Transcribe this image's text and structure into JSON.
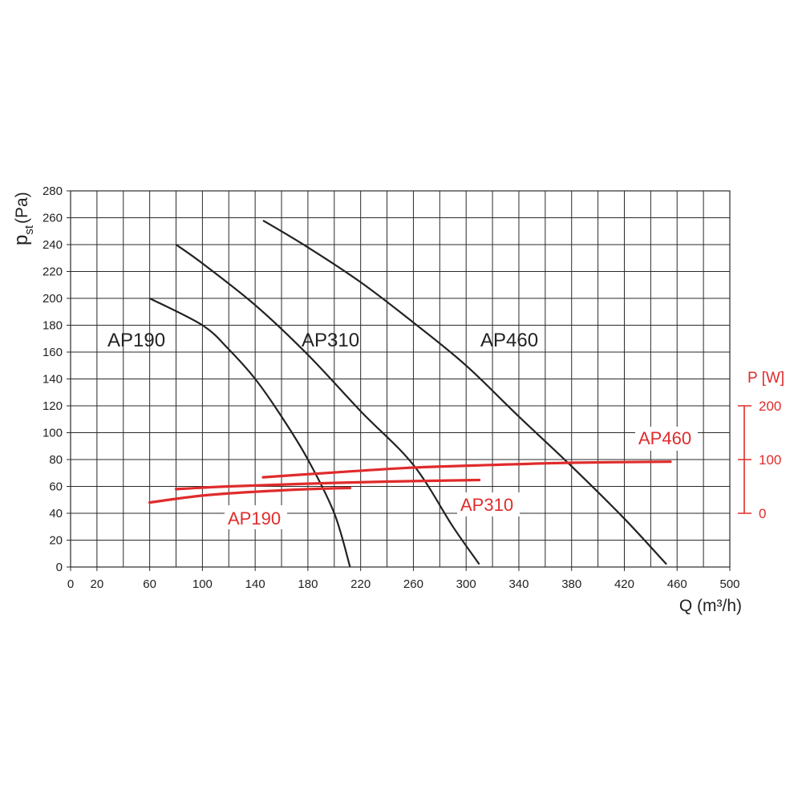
{
  "chart_data": {
    "type": "line",
    "xlabel": "Q (m³/h)",
    "x_ticks": [
      0,
      20,
      60,
      100,
      140,
      180,
      220,
      260,
      300,
      340,
      380,
      420,
      460,
      500
    ],
    "xlim": [
      0,
      500
    ],
    "grid_step_x": 20,
    "ylabel": {
      "main": "p",
      "sub": "st",
      "unit": "(Pa)"
    },
    "y_ticks": [
      0,
      20,
      40,
      60,
      80,
      100,
      120,
      140,
      160,
      180,
      200,
      220,
      240,
      260,
      280
    ],
    "ylim": [
      0,
      280
    ],
    "grid_step_y": 20,
    "grid": true,
    "secondary_axis": {
      "label": "P [W]",
      "ticks": [
        0,
        100,
        200
      ],
      "range_power": [
        0,
        200
      ],
      "maps_to_primary_y": [
        40,
        120
      ],
      "color": "#e02b2b"
    },
    "pressure_series": [
      {
        "name": "AP190",
        "axis": "primary",
        "color": "#222222",
        "points": [
          [
            60,
            200
          ],
          [
            100,
            180
          ],
          [
            120,
            162
          ],
          [
            140,
            140
          ],
          [
            160,
            112
          ],
          [
            180,
            80
          ],
          [
            200,
            40
          ],
          [
            212,
            0
          ]
        ]
      },
      {
        "name": "AP310",
        "axis": "primary",
        "color": "#222222",
        "points": [
          [
            80,
            240
          ],
          [
            100,
            226
          ],
          [
            140,
            195
          ],
          [
            180,
            158
          ],
          [
            220,
            116
          ],
          [
            260,
            76
          ],
          [
            290,
            30
          ],
          [
            310,
            2
          ]
        ]
      },
      {
        "name": "AP460",
        "axis": "primary",
        "color": "#222222",
        "points": [
          [
            146,
            258
          ],
          [
            180,
            238
          ],
          [
            220,
            212
          ],
          [
            260,
            182
          ],
          [
            300,
            150
          ],
          [
            340,
            112
          ],
          [
            380,
            75
          ],
          [
            420,
            36
          ],
          [
            452,
            2
          ]
        ]
      }
    ],
    "power_series": [
      {
        "name": "AP190",
        "axis": "secondary",
        "color": "#e02b2b",
        "points": [
          [
            60,
            20
          ],
          [
            100,
            33
          ],
          [
            140,
            40
          ],
          [
            180,
            45
          ],
          [
            212,
            47
          ]
        ]
      },
      {
        "name": "AP310",
        "axis": "secondary",
        "color": "#e02b2b",
        "points": [
          [
            80,
            45
          ],
          [
            120,
            50
          ],
          [
            180,
            55
          ],
          [
            240,
            59
          ],
          [
            310,
            62
          ]
        ]
      },
      {
        "name": "AP460",
        "axis": "secondary",
        "color": "#e02b2b",
        "points": [
          [
            146,
            67
          ],
          [
            200,
            76
          ],
          [
            260,
            85
          ],
          [
            320,
            90
          ],
          [
            380,
            94
          ],
          [
            455,
            96
          ]
        ]
      }
    ],
    "pressure_labels": [
      "AP190",
      "AP310",
      "AP460"
    ],
    "power_labels": [
      "AP190",
      "AP310",
      "AP460"
    ]
  }
}
